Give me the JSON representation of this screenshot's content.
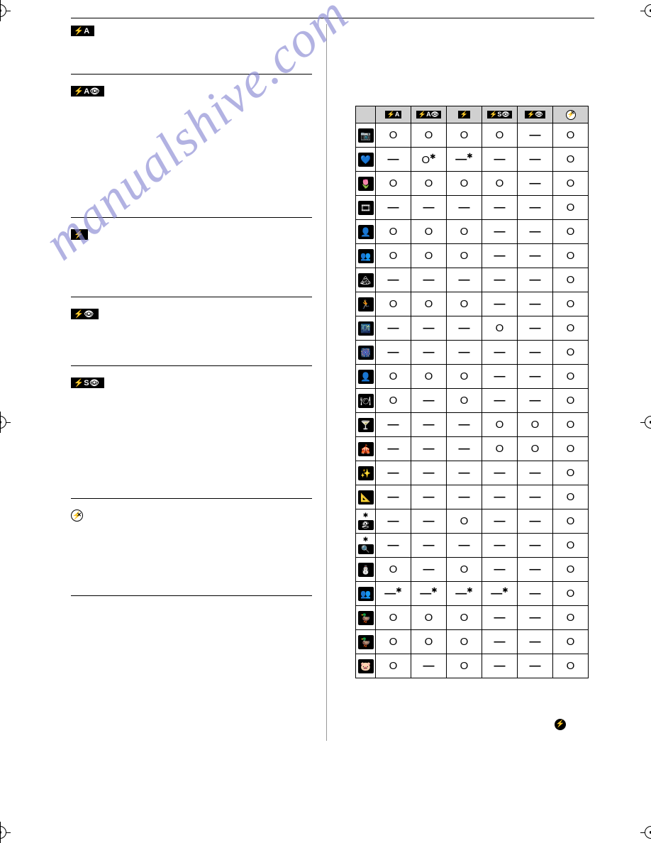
{
  "watermark_text": "manualshive.com",
  "left_sections": [
    {
      "badge": "⚡A",
      "spacer": 48
    },
    {
      "badge": "⚡A👁",
      "spacer": 165
    },
    {
      "badge": "⚡",
      "spacer": 75
    },
    {
      "badge": "⚡👁",
      "spacer": 60
    },
    {
      "badge": "⚡S👁",
      "spacer": 150
    },
    {
      "badge": "⊘",
      "spacer": 100
    }
  ],
  "table": {
    "headers": [
      "⚡A",
      "⚡A👁",
      "⚡",
      "⚡S👁",
      "⚡👁",
      "⊘"
    ],
    "row_icons": [
      "📷",
      "💙",
      "🌷",
      "🎞",
      "👤",
      "👥",
      "🏔",
      "🏃",
      "🌃",
      "🎆",
      "👤",
      "🍽",
      "🍸",
      "🎪",
      "✨",
      "📐",
      "✱🏖",
      "✱🔍",
      "⛄",
      "👥",
      "🦆",
      "🦆",
      "🐷"
    ],
    "cells": [
      [
        "O",
        "O",
        "O",
        "O",
        "—",
        "O"
      ],
      [
        "—",
        "O*",
        "—*",
        "—",
        "—",
        "O"
      ],
      [
        "O",
        "O",
        "O",
        "O",
        "—",
        "O"
      ],
      [
        "—",
        "—",
        "—",
        "—",
        "—",
        "O"
      ],
      [
        "O",
        "O",
        "O",
        "—",
        "—",
        "O"
      ],
      [
        "O",
        "O",
        "O",
        "—",
        "—",
        "O"
      ],
      [
        "—",
        "—",
        "—",
        "—",
        "—",
        "O"
      ],
      [
        "O",
        "O",
        "O",
        "—",
        "—",
        "O"
      ],
      [
        "—",
        "—",
        "—",
        "O",
        "—",
        "O"
      ],
      [
        "—",
        "—",
        "—",
        "—",
        "—",
        "O"
      ],
      [
        "O",
        "O",
        "O",
        "—",
        "—",
        "O"
      ],
      [
        "O",
        "—",
        "O",
        "—",
        "—",
        "O"
      ],
      [
        "—",
        "—",
        "—",
        "O",
        "O",
        "O"
      ],
      [
        "—",
        "—",
        "—",
        "O",
        "O",
        "O"
      ],
      [
        "—",
        "—",
        "—",
        "—",
        "—",
        "O"
      ],
      [
        "—",
        "—",
        "—",
        "—",
        "—",
        "O"
      ],
      [
        "—",
        "—",
        "O",
        "—",
        "—",
        "O"
      ],
      [
        "—",
        "—",
        "—",
        "—",
        "—",
        "O"
      ],
      [
        "O",
        "—",
        "O",
        "—",
        "—",
        "O"
      ],
      [
        "—*",
        "—*",
        "—*",
        "—*",
        "—",
        "O"
      ],
      [
        "O",
        "O",
        "O",
        "—",
        "—",
        "O"
      ],
      [
        "O",
        "O",
        "O",
        "—",
        "—",
        "O"
      ],
      [
        "O",
        "—",
        "O",
        "—",
        "—",
        "O"
      ]
    ]
  },
  "colors": {
    "watermark": "#8a8ad4",
    "header_bg": "#d0d0d0",
    "badge_bg": "#000000",
    "badge_fg": "#ffffff"
  }
}
